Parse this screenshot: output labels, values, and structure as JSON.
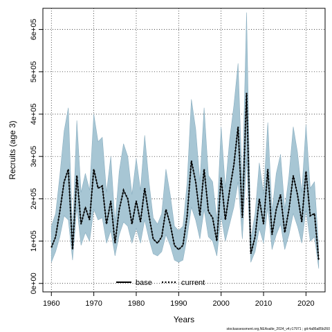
{
  "chart_data": {
    "type": "line",
    "xlabel": "Years",
    "ylabel": "Recruits (age 3)",
    "xlim": [
      1958,
      2024.5
    ],
    "ylim": [
      -20000,
      650000
    ],
    "x_ticks": [
      1960,
      1970,
      1980,
      1990,
      2000,
      2010,
      2020
    ],
    "x_tick_labels": [
      "1960",
      "1970",
      "1980",
      "1990",
      "2000",
      "2010",
      "2020"
    ],
    "y_ticks": [
      0,
      100000,
      200000,
      300000,
      400000,
      500000,
      600000
    ],
    "y_tick_labels": [
      "0e+00",
      "1e+05",
      "2e+05",
      "3e+05",
      "4e+05",
      "5e+05",
      "6e+05"
    ],
    "grid": true,
    "legend": {
      "position": "bottom-center",
      "entries": [
        {
          "label": "base",
          "style": "solid"
        },
        {
          "label": "current",
          "style": "dotted"
        }
      ]
    },
    "colors": {
      "band": "#a7c6d4",
      "band_edge": "#8aaec0",
      "line": "#000000"
    },
    "x": [
      1960,
      1961,
      1962,
      1963,
      1964,
      1965,
      1966,
      1967,
      1968,
      1969,
      1970,
      1971,
      1972,
      1973,
      1974,
      1975,
      1976,
      1977,
      1978,
      1979,
      1980,
      1981,
      1982,
      1983,
      1984,
      1985,
      1986,
      1987,
      1988,
      1989,
      1990,
      1991,
      1992,
      1993,
      1994,
      1995,
      1996,
      1997,
      1998,
      1999,
      2000,
      2001,
      2002,
      2003,
      2004,
      2005,
      2006,
      2007,
      2008,
      2009,
      2010,
      2011,
      2012,
      2013,
      2014,
      2015,
      2016,
      2017,
      2018,
      2019,
      2020,
      2021,
      2022,
      2023
    ],
    "series": [
      {
        "key": "current",
        "values": [
          85000,
          110000,
          170000,
          240000,
          270000,
          80000,
          255000,
          140000,
          180000,
          150000,
          270000,
          225000,
          230000,
          140000,
          195000,
          95000,
          175000,
          220000,
          200000,
          140000,
          195000,
          145000,
          225000,
          160000,
          105000,
          95000,
          110000,
          175000,
          140000,
          90000,
          80000,
          90000,
          160000,
          290000,
          240000,
          160000,
          270000,
          170000,
          155000,
          100000,
          250000,
          150000,
          220000,
          280000,
          370000,
          155000,
          450000,
          70000,
          110000,
          200000,
          140000,
          270000,
          115000,
          175000,
          210000,
          120000,
          175000,
          255000,
          210000,
          145000,
          265000,
          160000,
          165000,
          55000
        ],
        "lower": [
          50000,
          75000,
          110000,
          160000,
          150000,
          55000,
          180000,
          90000,
          120000,
          100000,
          175000,
          150000,
          155000,
          95000,
          125000,
          65000,
          115000,
          145000,
          135000,
          95000,
          130000,
          95000,
          150000,
          105000,
          70000,
          65000,
          75000,
          115000,
          90000,
          55000,
          50000,
          55000,
          110000,
          180000,
          150000,
          105000,
          175000,
          110000,
          100000,
          65000,
          160000,
          100000,
          140000,
          180000,
          240000,
          105000,
          295000,
          50000,
          75000,
          130000,
          95000,
          180000,
          80000,
          115000,
          140000,
          80000,
          115000,
          165000,
          135000,
          95000,
          175000,
          100000,
          110000,
          35000
        ],
        "upper": [
          135000,
          165000,
          255000,
          360000,
          415000,
          120000,
          385000,
          215000,
          260000,
          220000,
          400000,
          335000,
          345000,
          215000,
          300000,
          145000,
          265000,
          330000,
          300000,
          210000,
          295000,
          220000,
          350000,
          240000,
          155000,
          140000,
          165000,
          270000,
          210000,
          135000,
          125000,
          135000,
          240000,
          435000,
          365000,
          240000,
          415000,
          255000,
          240000,
          150000,
          370000,
          225000,
          340000,
          420000,
          520000,
          230000,
          640000,
          105000,
          165000,
          285000,
          210000,
          380000,
          170000,
          260000,
          305000,
          175000,
          255000,
          370000,
          310000,
          215000,
          375000,
          225000,
          240000,
          80000
        ]
      }
    ]
  },
  "footer": "stockassessment.org,NEAsalte_2024_v4,r17971 ; git:4a86a85b260"
}
